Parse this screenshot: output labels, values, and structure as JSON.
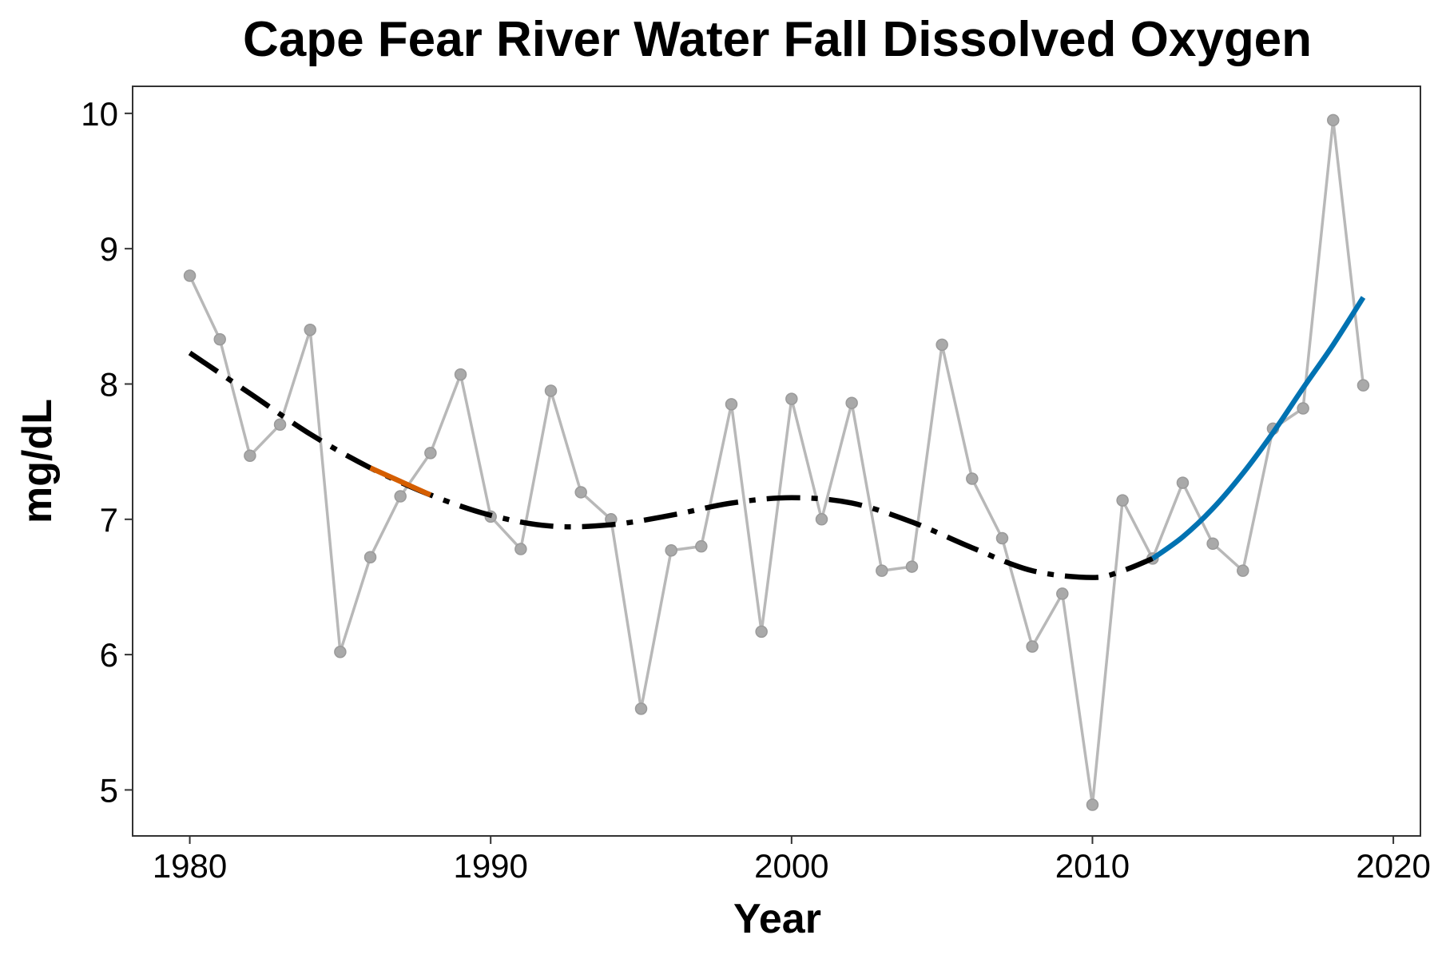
{
  "chart_data": {
    "type": "line",
    "title": "Cape Fear River Water Fall Dissolved Oxygen",
    "xlabel": "Year",
    "ylabel": "mg/dL",
    "xlim": [
      1978.1,
      2020.9
    ],
    "ylim": [
      4.66,
      10.2
    ],
    "xticks": [
      1980,
      1990,
      2000,
      2010,
      2020
    ],
    "yticks": [
      5,
      6,
      7,
      8,
      9,
      10
    ],
    "grid": false,
    "legend": "none",
    "series": [
      {
        "style": "observed",
        "color": "#b0b0b0",
        "x": [
          1980,
          1981,
          1982,
          1983,
          1984,
          1985,
          1986,
          1987,
          1988,
          1989,
          1990,
          1991,
          1992,
          1993,
          1994,
          1995,
          1996,
          1997,
          1998,
          1999,
          2000,
          2001,
          2002,
          2003,
          2004,
          2005,
          2006,
          2007,
          2008,
          2009,
          2010,
          2011,
          2012,
          2013,
          2014,
          2015,
          2016,
          2017,
          2018,
          2019
        ],
        "y": [
          8.8,
          8.33,
          7.47,
          7.7,
          8.4,
          6.02,
          6.72,
          7.17,
          7.49,
          8.07,
          7.02,
          6.78,
          7.95,
          7.2,
          7.0,
          5.6,
          6.77,
          6.8,
          7.85,
          6.17,
          7.89,
          7.0,
          7.86,
          6.62,
          6.65,
          8.29,
          7.3,
          6.86,
          6.06,
          6.45,
          4.89,
          7.14,
          6.71,
          7.27,
          6.82,
          6.62,
          7.67,
          7.82,
          9.95,
          7.99
        ]
      },
      {
        "style": "trend",
        "color": "#000000",
        "x": [
          1980,
          1982,
          1984,
          1986,
          1988,
          1990,
          1992,
          1994,
          1996,
          1998,
          2000,
          2002,
          2004,
          2006,
          2008,
          2010,
          2011,
          2012
        ],
        "y": [
          8.23,
          7.93,
          7.63,
          7.38,
          7.18,
          7.03,
          6.95,
          6.96,
          7.03,
          7.12,
          7.16,
          7.12,
          6.98,
          6.79,
          6.62,
          6.57,
          6.62,
          6.71
        ]
      },
      {
        "style": "decreasing",
        "color": "#d55e00",
        "x": [
          1986,
          1987,
          1988
        ],
        "y": [
          7.38,
          7.28,
          7.18
        ]
      },
      {
        "style": "increasing",
        "color": "#0072b2",
        "x": [
          2012,
          2013,
          2014,
          2015,
          2016,
          2017,
          2018,
          2019
        ],
        "y": [
          6.71,
          6.87,
          7.08,
          7.34,
          7.64,
          7.97,
          8.29,
          8.64
        ]
      }
    ]
  }
}
